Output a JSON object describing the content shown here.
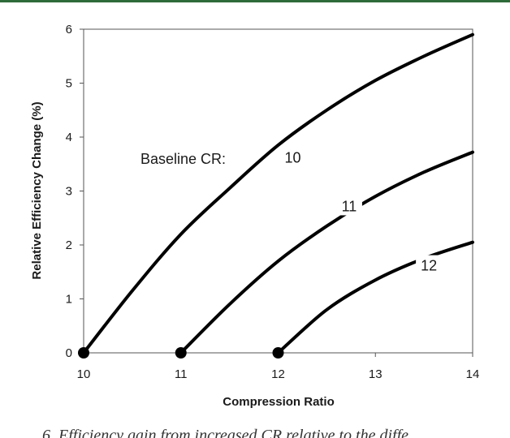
{
  "chart_data": {
    "type": "line",
    "title": "",
    "xlabel": "Compression Ratio",
    "ylabel": "Relative Efficiency Change (%)",
    "xlim": [
      10,
      14
    ],
    "ylim": [
      0,
      6
    ],
    "xticks": [
      "10",
      "11",
      "12",
      "13",
      "14"
    ],
    "yticks": [
      "0",
      "1",
      "2",
      "3",
      "4",
      "5",
      "6"
    ],
    "grid": false,
    "legend": "none",
    "annotation": "Baseline CR:",
    "series": [
      {
        "name": "10",
        "color": "#000000",
        "x": [
          10,
          10.5,
          11,
          11.5,
          12,
          12.5,
          13,
          13.5,
          14
        ],
        "y": [
          0,
          1.15,
          2.2,
          3.05,
          3.85,
          4.5,
          5.05,
          5.5,
          5.9
        ],
        "label_x": 12.15,
        "label_y": 3.6
      },
      {
        "name": "11",
        "color": "#000000",
        "x": [
          11,
          11.5,
          12,
          12.5,
          13,
          13.5,
          14
        ],
        "y": [
          0,
          0.9,
          1.7,
          2.35,
          2.9,
          3.35,
          3.72
        ],
        "label_x": 12.73,
        "label_y": 2.7
      },
      {
        "name": "12",
        "color": "#000000",
        "x": [
          12,
          12.5,
          13,
          13.5,
          14
        ],
        "y": [
          0,
          0.8,
          1.35,
          1.75,
          2.05
        ],
        "label_x": 13.55,
        "label_y": 1.6
      }
    ],
    "baseline_points": [
      {
        "x": 10,
        "y": 0
      },
      {
        "x": 11,
        "y": 0
      },
      {
        "x": 12,
        "y": 0
      }
    ]
  },
  "caption": "6. Efficiency gain from increased CR relative to the diffe"
}
